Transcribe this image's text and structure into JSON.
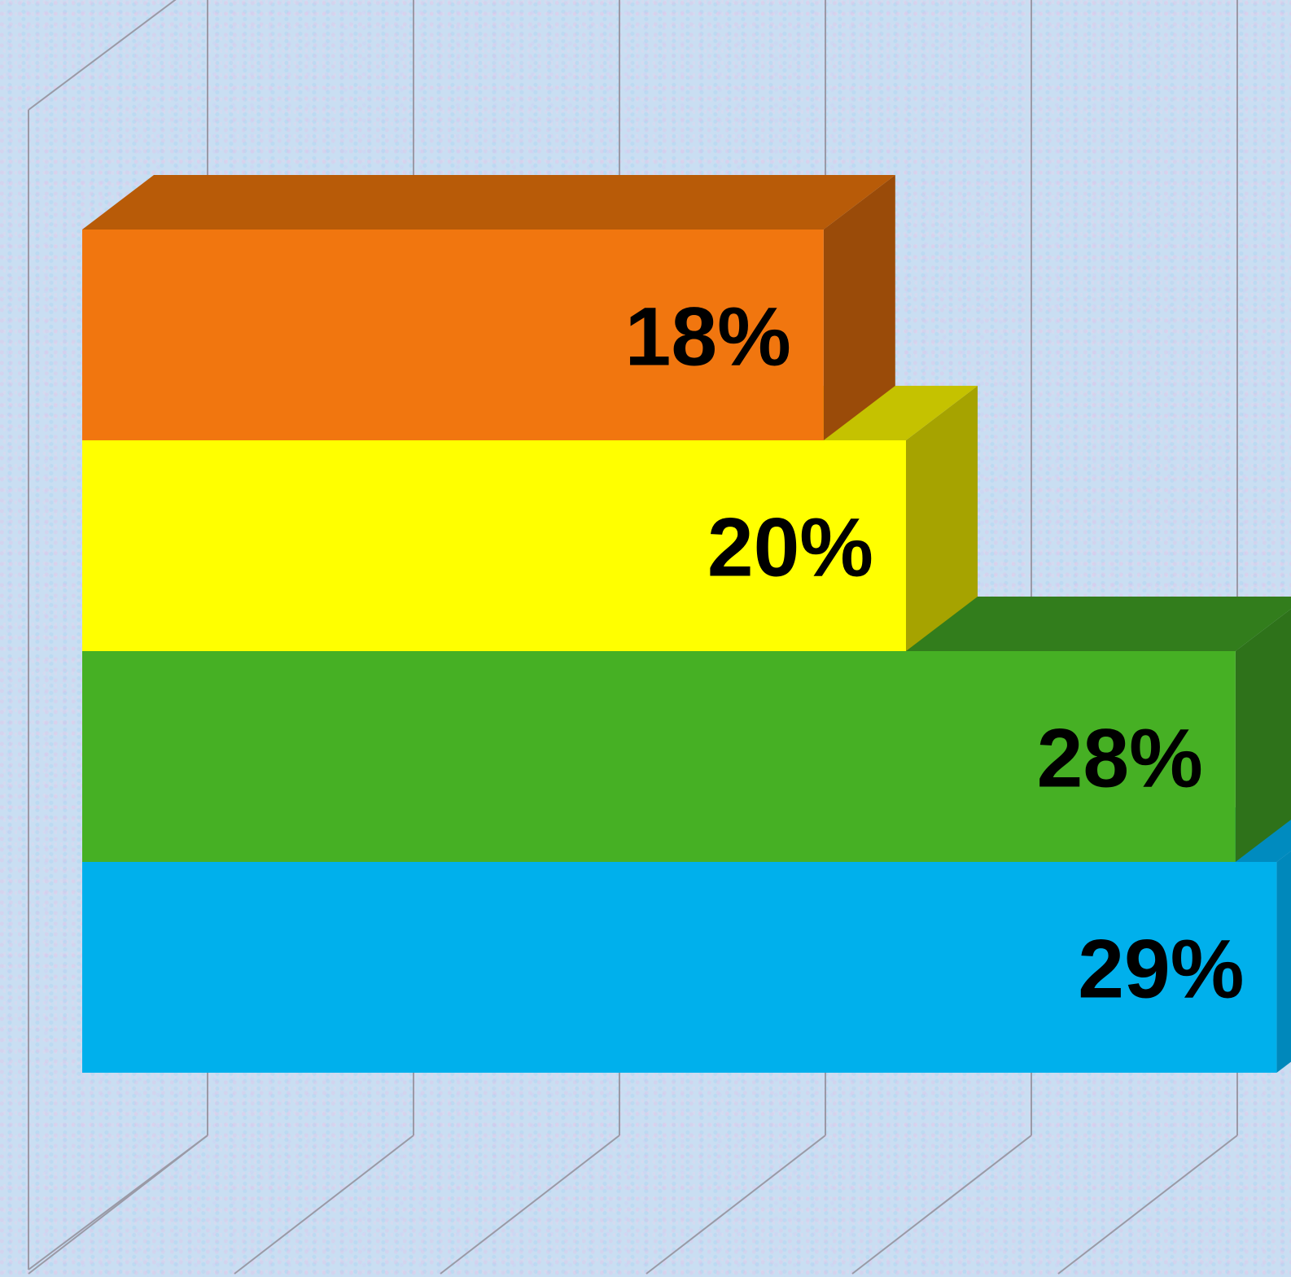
{
  "chart_data": {
    "type": "bar",
    "orientation": "horizontal",
    "style": "3d",
    "grid": true,
    "x_range": [
      0,
      30
    ],
    "x_tick_step": 5,
    "series": [
      {
        "label": "18%",
        "value": 18,
        "color": "#f1760f",
        "top_color": "#b85b08",
        "side_color": "#9a4b09"
      },
      {
        "label": "20%",
        "value": 20,
        "color": "#ffff00",
        "top_color": "#c5c200",
        "side_color": "#a6a300"
      },
      {
        "label": "28%",
        "value": 28,
        "color": "#46b024",
        "top_color": "#327d1c",
        "side_color": "#2e721a"
      },
      {
        "label": "29%",
        "value": 29,
        "color": "#00b0ec",
        "top_color": "#008bbf",
        "side_color": "#0088bb"
      }
    ]
  }
}
